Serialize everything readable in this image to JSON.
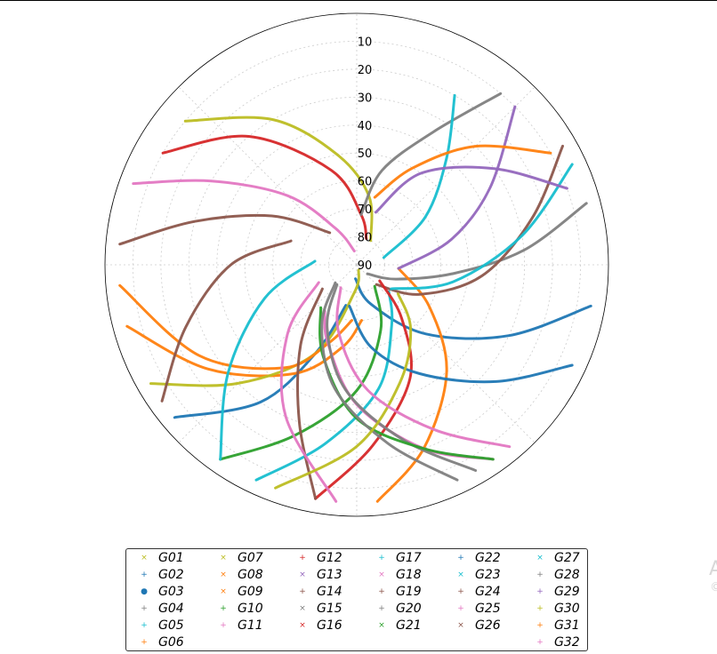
{
  "chart_data": {
    "type": "scatter",
    "polar": true,
    "title": "",
    "radial_axis": {
      "label": "",
      "range": [
        90,
        0
      ],
      "ticks": [
        10,
        20,
        30,
        40,
        50,
        60,
        70,
        80,
        90
      ]
    },
    "grid": true,
    "legend": "bottom-center",
    "series": [
      {
        "name": "G01",
        "color": "#bcbd22",
        "marker": "x",
        "points": [
          [
            310,
            10
          ],
          [
            330,
            30
          ],
          [
            350,
            50
          ],
          [
            10,
            65
          ],
          [
            30,
            80
          ]
        ]
      },
      {
        "name": "G02",
        "color": "#1f77b4",
        "marker": "+",
        "points": [
          [
            230,
            5
          ],
          [
            215,
            30
          ],
          [
            205,
            55
          ],
          [
            195,
            75
          ]
        ]
      },
      {
        "name": "G03",
        "color": "#1f77b4",
        "marker": "o",
        "points": [
          [
            100,
            5
          ],
          [
            115,
            30
          ],
          [
            135,
            55
          ],
          [
            160,
            75
          ],
          [
            185,
            85
          ]
        ]
      },
      {
        "name": "G04",
        "color": "#7f7f7f",
        "marker": "+",
        "points": [
          [
            75,
            5
          ],
          [
            85,
            30
          ],
          [
            95,
            55
          ],
          [
            110,
            75
          ],
          [
            130,
            85
          ]
        ]
      },
      {
        "name": "G05",
        "color": "#17becf",
        "marker": "+",
        "points": [
          [
            205,
            5
          ],
          [
            190,
            25
          ],
          [
            170,
            45
          ],
          [
            150,
            65
          ],
          [
            130,
            75
          ]
        ]
      },
      {
        "name": "G06",
        "color": "#ff7f0e",
        "marker": "+",
        "points": [
          [
            255,
            5
          ],
          [
            235,
            25
          ],
          [
            210,
            45
          ],
          [
            190,
            60
          ],
          [
            175,
            70
          ]
        ]
      },
      {
        "name": "G07",
        "color": "#bcbd22",
        "marker": "x",
        "points": [
          [
            240,
            5
          ],
          [
            225,
            30
          ],
          [
            205,
            55
          ],
          [
            185,
            80
          ],
          [
            160,
            88
          ]
        ]
      },
      {
        "name": "G08",
        "color": "#ff7f0e",
        "marker": "x",
        "points": [
          [
            175,
            5
          ],
          [
            160,
            20
          ],
          [
            140,
            40
          ],
          [
            120,
            60
          ],
          [
            95,
            75
          ]
        ]
      },
      {
        "name": "G09",
        "color": "#ff7f0e",
        "marker": "x",
        "points": [
          [
            265,
            5
          ],
          [
            240,
            25
          ],
          [
            215,
            45
          ],
          [
            200,
            60
          ],
          [
            185,
            70
          ]
        ]
      },
      {
        "name": "G10",
        "color": "#2ca02c",
        "marker": "+",
        "points": [
          [
            215,
            5
          ],
          [
            200,
            25
          ],
          [
            180,
            45
          ],
          [
            160,
            65
          ],
          [
            140,
            80
          ]
        ]
      },
      {
        "name": "G11",
        "color": "#e377c2",
        "marker": "+",
        "points": [
          [
            145,
            5
          ],
          [
            160,
            20
          ],
          [
            180,
            40
          ],
          [
            200,
            60
          ],
          [
            215,
            70
          ]
        ]
      },
      {
        "name": "G12",
        "color": "#d62728",
        "marker": "+",
        "points": [
          [
            300,
            10
          ],
          [
            320,
            30
          ],
          [
            345,
            55
          ],
          [
            5,
            72
          ],
          [
            20,
            80
          ]
        ]
      },
      {
        "name": "G13",
        "color": "#9467bd",
        "marker": "x",
        "points": [
          [
            45,
            10
          ],
          [
            60,
            35
          ],
          [
            75,
            55
          ],
          [
            95,
            75
          ]
        ]
      },
      {
        "name": "G14",
        "color": "#8c564b",
        "marker": "+",
        "points": [
          [
            60,
            5
          ],
          [
            75,
            25
          ],
          [
            95,
            45
          ],
          [
            115,
            65
          ],
          [
            135,
            80
          ]
        ]
      },
      {
        "name": "G15",
        "color": "#7f7f7f",
        "marker": "x",
        "points": [
          [
            40,
            10
          ],
          [
            30,
            35
          ],
          [
            15,
            55
          ],
          [
            5,
            72
          ]
        ]
      },
      {
        "name": "G16",
        "color": "#d62728",
        "marker": "x",
        "points": [
          [
            190,
            5
          ],
          [
            175,
            25
          ],
          [
            155,
            45
          ],
          [
            140,
            65
          ],
          [
            125,
            80
          ]
        ]
      },
      {
        "name": "G17",
        "color": "#17becf",
        "marker": "+",
        "points": [
          [
            215,
            5
          ],
          [
            230,
            30
          ],
          [
            250,
            55
          ],
          [
            275,
            75
          ]
        ]
      },
      {
        "name": "G18",
        "color": "#e377c2",
        "marker": "x",
        "points": [
          [
            290,
            5
          ],
          [
            300,
            30
          ],
          [
            315,
            55
          ],
          [
            330,
            75
          ],
          [
            350,
            85
          ]
        ]
      },
      {
        "name": "G19",
        "color": "#8c564b",
        "marker": "+",
        "points": [
          [
            275,
            5
          ],
          [
            285,
            30
          ],
          [
            300,
            55
          ],
          [
            320,
            75
          ]
        ]
      },
      {
        "name": "G20",
        "color": "#7f7f7f",
        "marker": "+",
        "points": [
          [
            150,
            5
          ],
          [
            165,
            25
          ],
          [
            185,
            45
          ],
          [
            205,
            65
          ],
          [
            225,
            80
          ]
        ]
      },
      {
        "name": "G21",
        "color": "#2ca02c",
        "marker": "x",
        "points": [
          [
            145,
            5
          ],
          [
            160,
            20
          ],
          [
            180,
            35
          ],
          [
            200,
            55
          ],
          [
            220,
            70
          ]
        ]
      },
      {
        "name": "G22",
        "color": "#1f77b4",
        "marker": "+",
        "points": [
          [
            115,
            5
          ],
          [
            130,
            25
          ],
          [
            150,
            45
          ],
          [
            170,
            60
          ],
          [
            190,
            75
          ]
        ]
      },
      {
        "name": "G23",
        "color": "#17becf",
        "marker": "x",
        "points": [
          [
            65,
            5
          ],
          [
            80,
            30
          ],
          [
            100,
            55
          ],
          [
            125,
            75
          ]
        ]
      },
      {
        "name": "G24",
        "color": "#8c564b",
        "marker": "+",
        "points": [
          [
            190,
            5
          ],
          [
            200,
            30
          ],
          [
            215,
            55
          ],
          [
            235,
            75
          ]
        ]
      },
      {
        "name": "G25",
        "color": "#e377c2",
        "marker": "+",
        "points": [
          [
            185,
            5
          ],
          [
            205,
            30
          ],
          [
            225,
            55
          ],
          [
            245,
            75
          ]
        ]
      },
      {
        "name": "G26",
        "color": "#8c564b",
        "marker": "x",
        "points": [
          [
            235,
            5
          ],
          [
            250,
            25
          ],
          [
            270,
            45
          ],
          [
            290,
            65
          ]
        ]
      },
      {
        "name": "G27",
        "color": "#17becf",
        "marker": "x",
        "points": [
          [
            30,
            20
          ],
          [
            40,
            40
          ],
          [
            55,
            60
          ],
          [
            75,
            80
          ]
        ]
      },
      {
        "name": "G28",
        "color": "#7f7f7f",
        "marker": "+",
        "points": [
          [
            155,
            5
          ],
          [
            170,
            25
          ],
          [
            190,
            45
          ],
          [
            210,
            65
          ],
          [
            230,
            80
          ]
        ]
      },
      {
        "name": "G29",
        "color": "#9467bd",
        "marker": "+",
        "points": [
          [
            70,
            10
          ],
          [
            55,
            30
          ],
          [
            35,
            50
          ],
          [
            20,
            70
          ]
        ]
      },
      {
        "name": "G30",
        "color": "#bcbd22",
        "marker": "+",
        "points": [
          [
            200,
            5
          ],
          [
            180,
            25
          ],
          [
            160,
            45
          ],
          [
            140,
            60
          ],
          [
            125,
            72
          ]
        ]
      },
      {
        "name": "G31",
        "color": "#ff7f0e",
        "marker": "+",
        "points": [
          [
            60,
            10
          ],
          [
            45,
            30
          ],
          [
            30,
            50
          ],
          [
            15,
            65
          ]
        ]
      },
      {
        "name": "G32",
        "color": "#e377c2",
        "marker": "+",
        "points": [
          [
            140,
            5
          ],
          [
            155,
            25
          ],
          [
            175,
            45
          ],
          [
            195,
            65
          ],
          [
            215,
            80
          ]
        ]
      }
    ]
  },
  "corner": {
    "big": "A",
    "small": "©"
  }
}
